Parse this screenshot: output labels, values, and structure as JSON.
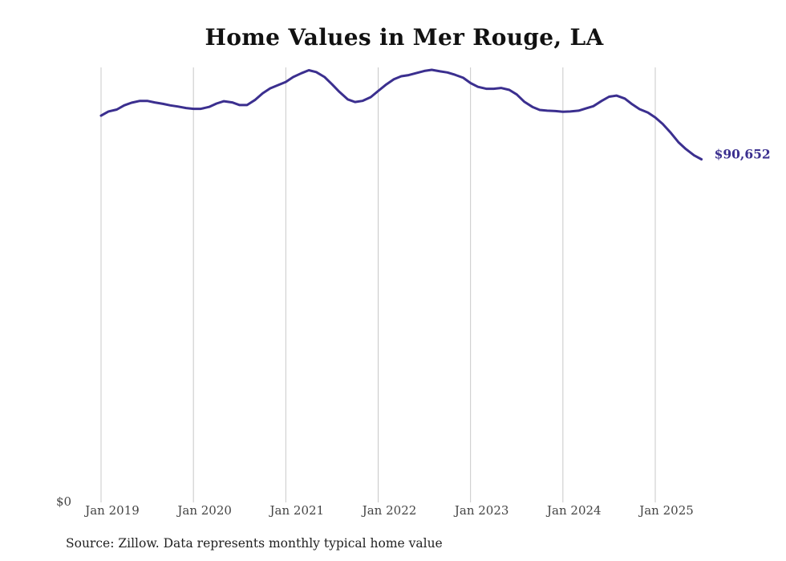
{
  "colors": {
    "line": "#3b2f8f",
    "grid": "#c8c8c8",
    "end_label": "#3b2f8f"
  },
  "chart_data": {
    "type": "line",
    "title": "Home Values in Mer Rouge, LA",
    "source": "Source: Zillow. Data represents monthly typical home value",
    "xlabel": "",
    "ylabel": "",
    "y_tick_labels": [
      "$0"
    ],
    "x_tick_labels": [
      "Jan 2019",
      "Jan 2020",
      "Jan 2021",
      "Jan 2022",
      "Jan 2023",
      "Jan 2024",
      "Jan 2025"
    ],
    "end_label": "$90,652",
    "grid": "vertical",
    "legend": "none",
    "ylim": [
      0,
      135000
    ],
    "series": [
      {
        "values": [
          [
            2019.0,
            102200
          ],
          [
            2019.08,
            103300
          ],
          [
            2019.17,
            103800
          ],
          [
            2019.25,
            104900
          ],
          [
            2019.33,
            105600
          ],
          [
            2019.42,
            106100
          ],
          [
            2019.5,
            106100
          ],
          [
            2019.58,
            105700
          ],
          [
            2019.67,
            105300
          ],
          [
            2019.75,
            104900
          ],
          [
            2019.83,
            104600
          ],
          [
            2019.92,
            104200
          ],
          [
            2020.0,
            104000
          ],
          [
            2020.08,
            104000
          ],
          [
            2020.17,
            104500
          ],
          [
            2020.25,
            105400
          ],
          [
            2020.33,
            106000
          ],
          [
            2020.42,
            105700
          ],
          [
            2020.5,
            105000
          ],
          [
            2020.58,
            105000
          ],
          [
            2020.67,
            106400
          ],
          [
            2020.75,
            108100
          ],
          [
            2020.83,
            109400
          ],
          [
            2020.92,
            110300
          ],
          [
            2021.0,
            111100
          ],
          [
            2021.08,
            112400
          ],
          [
            2021.17,
            113400
          ],
          [
            2021.25,
            114200
          ],
          [
            2021.33,
            113700
          ],
          [
            2021.42,
            112400
          ],
          [
            2021.5,
            110500
          ],
          [
            2021.58,
            108500
          ],
          [
            2021.67,
            106500
          ],
          [
            2021.75,
            105800
          ],
          [
            2021.83,
            106100
          ],
          [
            2021.92,
            107100
          ],
          [
            2022.0,
            108700
          ],
          [
            2022.08,
            110300
          ],
          [
            2022.17,
            111800
          ],
          [
            2022.25,
            112600
          ],
          [
            2022.33,
            112900
          ],
          [
            2022.42,
            113500
          ],
          [
            2022.5,
            114000
          ],
          [
            2022.58,
            114300
          ],
          [
            2022.67,
            113900
          ],
          [
            2022.75,
            113600
          ],
          [
            2022.83,
            113000
          ],
          [
            2022.92,
            112200
          ],
          [
            2023.0,
            110800
          ],
          [
            2023.08,
            109800
          ],
          [
            2023.17,
            109300
          ],
          [
            2023.25,
            109300
          ],
          [
            2023.33,
            109500
          ],
          [
            2023.42,
            109000
          ],
          [
            2023.5,
            107800
          ],
          [
            2023.58,
            105900
          ],
          [
            2023.67,
            104500
          ],
          [
            2023.75,
            103700
          ],
          [
            2023.83,
            103500
          ],
          [
            2023.92,
            103400
          ],
          [
            2024.0,
            103200
          ],
          [
            2024.08,
            103300
          ],
          [
            2024.17,
            103500
          ],
          [
            2024.25,
            104100
          ],
          [
            2024.33,
            104700
          ],
          [
            2024.42,
            106100
          ],
          [
            2024.5,
            107200
          ],
          [
            2024.58,
            107500
          ],
          [
            2024.67,
            106700
          ],
          [
            2024.75,
            105200
          ],
          [
            2024.83,
            103900
          ],
          [
            2024.92,
            103000
          ],
          [
            2025.0,
            101700
          ],
          [
            2025.08,
            100000
          ],
          [
            2025.17,
            97600
          ],
          [
            2025.25,
            95200
          ],
          [
            2025.33,
            93400
          ],
          [
            2025.42,
            91700
          ],
          [
            2025.5,
            90652
          ]
        ]
      }
    ]
  }
}
